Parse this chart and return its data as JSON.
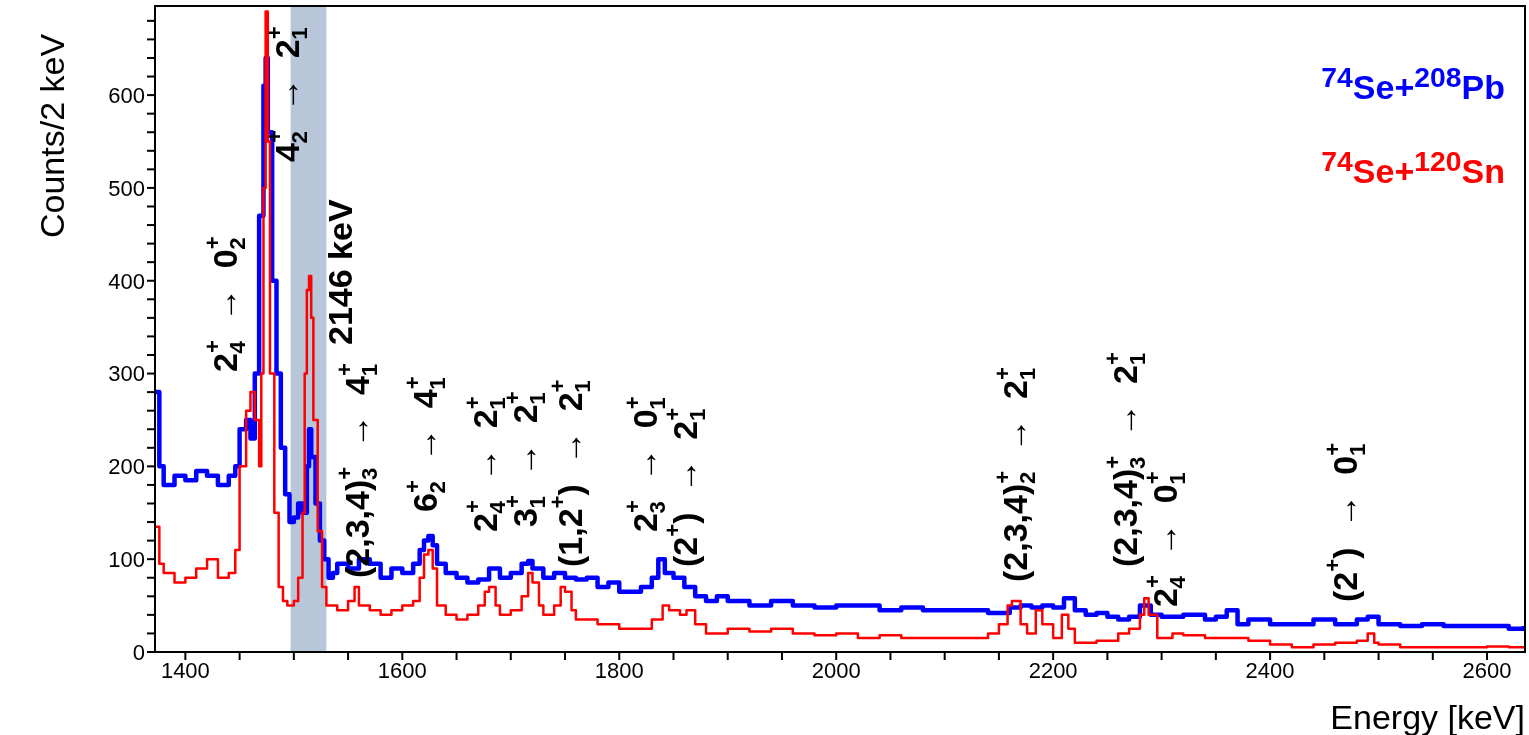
{
  "chart_data": {
    "type": "step",
    "xlabel": "Energy [keV]",
    "ylabel": "Counts/2 keV",
    "xlim": [
      1372,
      2635
    ],
    "ylim": [
      0,
      696
    ],
    "xticks": [
      1400,
      {
        "value": 1450,
        "label": null
      },
      {
        "value": 1500,
        "label": null
      },
      {
        "value": 1550,
        "label": null
      },
      1600,
      {
        "value": 1650,
        "label": null
      },
      {
        "value": 1700,
        "label": null
      },
      {
        "value": 1750,
        "label": null
      },
      1800,
      {
        "value": 1850,
        "label": null
      },
      {
        "value": 1900,
        "label": null
      },
      {
        "value": 1950,
        "label": null
      },
      2000,
      {
        "value": 2050,
        "label": null
      },
      {
        "value": 2100,
        "label": null
      },
      {
        "value": 2150,
        "label": null
      },
      2200,
      {
        "value": 2250,
        "label": null
      },
      {
        "value": 2300,
        "label": null
      },
      {
        "value": 2350,
        "label": null
      },
      2400,
      {
        "value": 2450,
        "label": null
      },
      {
        "value": 2500,
        "label": null
      },
      {
        "value": 2550,
        "label": null
      },
      2600
    ],
    "yticks": [
      0,
      {
        "value": 20,
        "label": null
      },
      {
        "value": 40,
        "label": null
      },
      {
        "value": 60,
        "label": null
      },
      {
        "value": 80,
        "label": null
      },
      100,
      {
        "value": 120,
        "label": null
      },
      {
        "value": 140,
        "label": null
      },
      {
        "value": 160,
        "label": null
      },
      {
        "value": 180,
        "label": null
      },
      200,
      {
        "value": 220,
        "label": null
      },
      {
        "value": 240,
        "label": null
      },
      {
        "value": 260,
        "label": null
      },
      {
        "value": 280,
        "label": null
      },
      300,
      {
        "value": 320,
        "label": null
      },
      {
        "value": 340,
        "label": null
      },
      {
        "value": 360,
        "label": null
      },
      {
        "value": 380,
        "label": null
      },
      400,
      {
        "value": 420,
        "label": null
      },
      {
        "value": 440,
        "label": null
      },
      {
        "value": 460,
        "label": null
      },
      {
        "value": 480,
        "label": null
      },
      500,
      {
        "value": 520,
        "label": null
      },
      {
        "value": 540,
        "label": null
      },
      {
        "value": 560,
        "label": null
      },
      {
        "value": 580,
        "label": null
      },
      600,
      {
        "value": 620,
        "label": null
      },
      {
        "value": 640,
        "label": null
      },
      {
        "value": 660,
        "label": null
      },
      {
        "value": 680,
        "label": null
      }
    ],
    "legend": "top right",
    "series": [
      {
        "name": "$^{74}$Se+$^{208}$Pb",
        "color": "#0000ff",
        "x": [
          1372,
          1376,
          1380,
          1390,
          1400,
          1410,
          1420,
          1430,
          1440,
          1446,
          1450,
          1456,
          1460,
          1464,
          1468,
          1472,
          1474,
          1476,
          1480,
          1484,
          1488,
          1492,
          1496,
          1500,
          1504,
          1508,
          1512,
          1514,
          1516,
          1520,
          1524,
          1528,
          1532,
          1536,
          1540,
          1550,
          1560,
          1570,
          1580,
          1590,
          1600,
          1610,
          1616,
          1620,
          1624,
          1628,
          1632,
          1640,
          1650,
          1660,
          1670,
          1680,
          1690,
          1700,
          1710,
          1716,
          1720,
          1730,
          1740,
          1750,
          1760,
          1770,
          1780,
          1790,
          1800,
          1810,
          1820,
          1830,
          1836,
          1842,
          1850,
          1860,
          1870,
          1880,
          1890,
          1900,
          1920,
          1940,
          1960,
          1980,
          2000,
          2020,
          2040,
          2060,
          2080,
          2100,
          2120,
          2140,
          2160,
          2170,
          2180,
          2190,
          2200,
          2210,
          2220,
          2230,
          2240,
          2250,
          2260,
          2270,
          2280,
          2290,
          2300,
          2320,
          2340,
          2350,
          2360,
          2370,
          2380,
          2400,
          2420,
          2440,
          2460,
          2480,
          2490,
          2500,
          2520,
          2540,
          2560,
          2580,
          2600,
          2620,
          2634
        ],
        "values": [
          280,
          200,
          180,
          190,
          185,
          195,
          190,
          180,
          190,
          200,
          240,
          250,
          230,
          300,
          470,
          610,
          640,
          560,
          400,
          300,
          220,
          170,
          140,
          145,
          160,
          150,
          200,
          240,
          210,
          160,
          120,
          100,
          80,
          85,
          95,
          90,
          100,
          95,
          80,
          90,
          85,
          95,
          110,
          120,
          125,
          115,
          95,
          85,
          80,
          75,
          78,
          90,
          80,
          85,
          95,
          98,
          90,
          80,
          85,
          80,
          78,
          80,
          70,
          75,
          65,
          65,
          70,
          80,
          100,
          85,
          80,
          70,
          60,
          55,
          60,
          55,
          50,
          55,
          50,
          48,
          50,
          50,
          45,
          48,
          45,
          45,
          45,
          42,
          48,
          50,
          48,
          50,
          48,
          58,
          45,
          40,
          42,
          38,
          35,
          38,
          50,
          40,
          38,
          40,
          35,
          38,
          45,
          30,
          35,
          30,
          30,
          35,
          30,
          35,
          38,
          30,
          28,
          30,
          28,
          28,
          28,
          25,
          28
        ]
      },
      {
        "name": "$^{74}$Se+$^{120}$Sn",
        "color": "#ff0000",
        "x": [
          1372,
          1376,
          1380,
          1390,
          1400,
          1410,
          1420,
          1430,
          1440,
          1446,
          1450,
          1456,
          1460,
          1464,
          1468,
          1470,
          1472,
          1474,
          1476,
          1478,
          1482,
          1486,
          1490,
          1494,
          1500,
          1504,
          1508,
          1510,
          1512,
          1514,
          1516,
          1518,
          1522,
          1526,
          1530,
          1540,
          1550,
          1556,
          1560,
          1570,
          1580,
          1590,
          1600,
          1610,
          1616,
          1620,
          1624,
          1628,
          1632,
          1640,
          1650,
          1660,
          1670,
          1676,
          1680,
          1686,
          1690,
          1700,
          1710,
          1716,
          1720,
          1726,
          1730,
          1740,
          1746,
          1750,
          1756,
          1760,
          1780,
          1800,
          1820,
          1830,
          1840,
          1846,
          1856,
          1862,
          1870,
          1880,
          1900,
          1920,
          1940,
          1960,
          1980,
          2000,
          2020,
          2040,
          2060,
          2080,
          2100,
          2120,
          2140,
          2150,
          2158,
          2162,
          2170,
          2176,
          2184,
          2190,
          2200,
          2208,
          2214,
          2220,
          2240,
          2260,
          2270,
          2280,
          2284,
          2288,
          2296,
          2310,
          2320,
          2340,
          2360,
          2380,
          2400,
          2420,
          2440,
          2460,
          2480,
          2490,
          2496,
          2500,
          2520,
          2540,
          2560,
          2580,
          2600,
          2620,
          2634
        ],
        "values": [
          135,
          95,
          85,
          75,
          80,
          90,
          100,
          80,
          85,
          110,
          200,
          260,
          280,
          250,
          200,
          300,
          500,
          690,
          550,
          300,
          150,
          70,
          55,
          50,
          55,
          80,
          150,
          300,
          390,
          405,
          360,
          250,
          130,
          70,
          50,
          45,
          55,
          70,
          50,
          45,
          40,
          45,
          50,
          55,
          80,
          105,
          110,
          90,
          50,
          40,
          35,
          40,
          50,
          65,
          70,
          50,
          40,
          45,
          60,
          85,
          75,
          50,
          40,
          50,
          70,
          65,
          45,
          35,
          30,
          25,
          25,
          35,
          50,
          45,
          40,
          45,
          30,
          20,
          25,
          22,
          25,
          20,
          18,
          20,
          15,
          18,
          15,
          15,
          15,
          15,
          20,
          30,
          50,
          55,
          30,
          20,
          45,
          30,
          15,
          40,
          25,
          10,
          12,
          20,
          25,
          40,
          58,
          40,
          15,
          20,
          18,
          15,
          15,
          12,
          8,
          5,
          8,
          10,
          12,
          20,
          10,
          8,
          5,
          5,
          5,
          5,
          6,
          5,
          6
        ]
      }
    ],
    "bands": [
      {
        "axis": "x",
        "from": 1497,
        "to": 1530,
        "label": "2146 keV",
        "color": "#b7c6d8"
      }
    ],
    "annotations": [
      "2$^{+}$$_{4}$ → 0$^{+}$$_{2}$",
      "4$^{+}$$_{2}$ → 2$^{+}$$_{1}$",
      "(2,3,4)$^{+}$$_{3}$ → 4$^{+}$$_{1}$",
      "6$^{+}$$_{2}$ → 4$^{+}$$_{1}$",
      "2$^{+}$$_{4}$ → 2$^{+}$$_{1}$",
      "3$^{+}$$_{1}$ → 2$^{+}$$_{1}$",
      "(1,2$^{+}$) → 2$^{+}$$_{1}$",
      "2$^{+}$$_{3}$ → 0$^{+}$$_{1}$",
      "(2$^{+}$) → 2$^{+}$$_{1}$",
      "(2,3,4)$^{+}$$_{2}$ → 2$^{+}$$_{1}$",
      "(2,3,4)$^{+}$$_{3}$ → 2$^{+}$$_{1}$",
      "2$^{+}$$_{4}$ → 0$^{+}$$_{1}$",
      "(2$^{+}$) → 0$^{+}$$_{1}$"
    ]
  }
}
